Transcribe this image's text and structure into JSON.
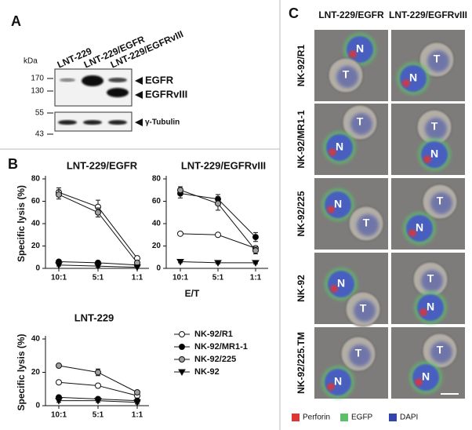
{
  "panel_labels": {
    "a": "A",
    "b": "B",
    "c": "C"
  },
  "panel_a": {
    "lanes": [
      "LNT-229",
      "LNT-229/EGFR",
      "LNT-229/EGFRvIII"
    ],
    "kda_label": "kDa",
    "markers": [
      "170",
      "130",
      "55",
      "43"
    ],
    "bands": [
      "EGFR",
      "EGFRvIII",
      "γ-Tubulin"
    ]
  },
  "chart_data": [
    {
      "type": "line",
      "title": "LNT-229/EGFR",
      "ylabel": "Specific lysis  (%)",
      "xlabel": "E/T",
      "categories": [
        "10:1",
        "5:1",
        "1:1"
      ],
      "ylim": [
        0,
        80
      ],
      "yticks": [
        0,
        20,
        40,
        60,
        80
      ],
      "series": [
        {
          "marker": "circle",
          "color": "#ffffff",
          "values": [
            68,
            55,
            9
          ],
          "errors": [
            4,
            6,
            2
          ]
        },
        {
          "marker": "circle",
          "color": "#000000",
          "values": [
            6,
            5,
            3
          ],
          "errors": [
            1,
            1,
            1
          ]
        },
        {
          "marker": "circle",
          "color": "#a0a0a0",
          "values": [
            66,
            50,
            5
          ],
          "errors": [
            4,
            4,
            1
          ]
        },
        {
          "marker": "triangle",
          "color": "#000000",
          "values": [
            3,
            2,
            1
          ],
          "errors": [
            1,
            1,
            1
          ]
        }
      ]
    },
    {
      "type": "line",
      "title": "LNT-229/EGFRvIII",
      "categories": [
        "10:1",
        "5:1",
        "1:1"
      ],
      "ylim": [
        0,
        80
      ],
      "yticks": [
        0,
        20,
        40,
        60,
        80
      ],
      "series": [
        {
          "marker": "circle",
          "color": "#ffffff",
          "values": [
            31,
            30,
            18
          ],
          "errors": [
            1,
            1,
            2
          ]
        },
        {
          "marker": "circle",
          "color": "#000000",
          "values": [
            67,
            62,
            28
          ],
          "errors": [
            4,
            4,
            4
          ]
        },
        {
          "marker": "circle",
          "color": "#a0a0a0",
          "values": [
            70,
            58,
            16
          ],
          "errors": [
            3,
            6,
            3
          ]
        },
        {
          "marker": "triangle",
          "color": "#000000",
          "values": [
            6,
            5,
            5
          ],
          "errors": [
            1,
            1,
            1
          ]
        }
      ]
    },
    {
      "type": "line",
      "title": "LNT-229",
      "ylabel": "Specific lysis  (%)",
      "categories": [
        "10:1",
        "5:1",
        "1:1"
      ],
      "ylim": [
        0,
        40
      ],
      "yticks": [
        0,
        20,
        40
      ],
      "series": [
        {
          "name": "NK-92/R1",
          "marker": "circle",
          "color": "#ffffff",
          "values": [
            14,
            12,
            6
          ],
          "errors": [
            1,
            1,
            1
          ]
        },
        {
          "name": "NK-92/MR1-1",
          "marker": "circle",
          "color": "#000000",
          "values": [
            5,
            4,
            3
          ],
          "errors": [
            1,
            1,
            1
          ]
        },
        {
          "name": "NK-92/225",
          "marker": "circle",
          "color": "#a0a0a0",
          "values": [
            24,
            20,
            8
          ],
          "errors": [
            1,
            2,
            1
          ]
        },
        {
          "name": "NK-92",
          "marker": "triangle",
          "color": "#000000",
          "values": [
            3,
            3,
            2
          ],
          "errors": [
            1,
            1,
            1
          ]
        }
      ]
    }
  ],
  "panel_c": {
    "columns": [
      "LNT-229/EGFR",
      "LNT-229/EGFRvIII"
    ],
    "rows": [
      {
        "label": "NK-92/R1",
        "cells": [
          [
            "N",
            "T"
          ],
          [
            "T",
            "N"
          ]
        ]
      },
      {
        "label": "NK-92/MR1-1",
        "cells": [
          [
            "T",
            "N"
          ],
          [
            "T",
            "N"
          ]
        ]
      },
      {
        "label": "NK-92/225",
        "cells": [
          [
            "N",
            "T"
          ],
          [
            "T",
            "N"
          ]
        ]
      },
      {
        "label": "NK-92",
        "cells": [
          [
            "N",
            "T"
          ],
          [
            "T",
            "N"
          ]
        ]
      },
      {
        "label": "NK-92/225.TM",
        "cells": [
          [
            "T",
            "N"
          ],
          [
            "T",
            "N"
          ]
        ]
      }
    ],
    "legend": [
      {
        "name": "Perforin",
        "color": "#e03535"
      },
      {
        "name": "EGFP",
        "color": "#5cbf6a"
      },
      {
        "name": "DAPI",
        "color": "#3344aa"
      }
    ]
  }
}
